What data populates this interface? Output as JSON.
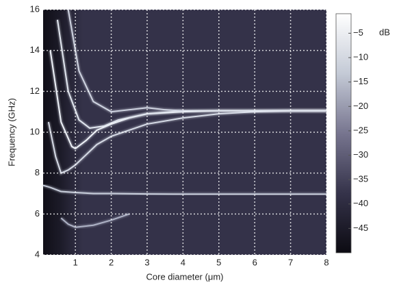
{
  "chart_data": {
    "type": "heatmap-lines",
    "xlabel": "Core diameter (μm)",
    "ylabel": "Frequency (GHz)",
    "xlim": [
      0.1,
      8
    ],
    "ylim": [
      4,
      16
    ],
    "xticks": [
      1,
      2,
      3,
      4,
      5,
      6,
      7,
      8
    ],
    "yticks": [
      4,
      6,
      8,
      10,
      12,
      14,
      16
    ],
    "grid": true,
    "background": "#343249",
    "colorbar_unit": "dB",
    "clim": [
      -50,
      -1
    ],
    "colorbar_colors": [
      "#0c0b12",
      "#35334a",
      "#77758f",
      "#c4cad6",
      "#ffffff"
    ],
    "colorbar_ticks": [
      {
        "value": -5,
        "label": "−5"
      },
      {
        "value": -10,
        "label": "−10"
      },
      {
        "value": -15,
        "label": "−15"
      },
      {
        "value": -20,
        "label": "−20"
      },
      {
        "value": -25,
        "label": "−25"
      },
      {
        "value": -30,
        "label": "−30"
      },
      {
        "value": -35,
        "label": "−35"
      },
      {
        "value": -40,
        "label": "−40"
      },
      {
        "value": -45,
        "label": "−45"
      }
    ],
    "series": [
      {
        "color": "#c9cfdc",
        "x": [
          0.1,
          0.3,
          0.6,
          1,
          1.5,
          2,
          3,
          4,
          5,
          6,
          7,
          8
        ],
        "values": [
          7.4,
          7.3,
          7.1,
          7.05,
          7.0,
          7.0,
          6.98,
          6.97,
          6.97,
          6.97,
          6.97,
          6.97
        ]
      },
      {
        "color": "#aeb3c6",
        "x": [
          0.6,
          0.8,
          1,
          1.5,
          2,
          2.5
        ],
        "values": [
          5.8,
          5.5,
          5.35,
          5.45,
          5.7,
          6.0
        ]
      },
      {
        "color": "#d6dbe6",
        "x": [
          0.25,
          0.45,
          0.6,
          0.8,
          1,
          1.3,
          1.6,
          2,
          3,
          4,
          5,
          6,
          7,
          8
        ],
        "values": [
          10.5,
          8.8,
          8.0,
          8.15,
          8.4,
          8.9,
          9.4,
          9.8,
          10.4,
          10.7,
          10.9,
          11.0,
          11.05,
          11.05
        ]
      },
      {
        "color": "#eef2f8",
        "x": [
          0.3,
          0.6,
          0.9,
          1.0,
          1.3,
          1.6,
          2.0,
          2.5,
          3,
          4,
          5,
          6,
          7,
          8
        ],
        "values": [
          14,
          10.5,
          9.3,
          9.2,
          9.6,
          10.1,
          10.4,
          10.7,
          10.9,
          11.0,
          11.05,
          11.05,
          11.05,
          11.05
        ]
      },
      {
        "color": "#e2e7f0",
        "x": [
          0.5,
          0.8,
          1.1,
          1.4,
          1.8,
          2.2,
          3,
          4,
          5,
          6,
          7,
          8
        ],
        "values": [
          15.5,
          12,
          10.6,
          10.2,
          10.3,
          10.6,
          10.9,
          11.05,
          11.05,
          11.05,
          11.05,
          11.05
        ]
      },
      {
        "color": "#d0d5e2",
        "x": [
          0.8,
          1.1,
          1.5,
          2,
          2.5,
          3,
          3.5,
          4
        ],
        "values": [
          16,
          13,
          11.5,
          11.0,
          11.1,
          11.2,
          11.1,
          11.05
        ]
      }
    ]
  }
}
